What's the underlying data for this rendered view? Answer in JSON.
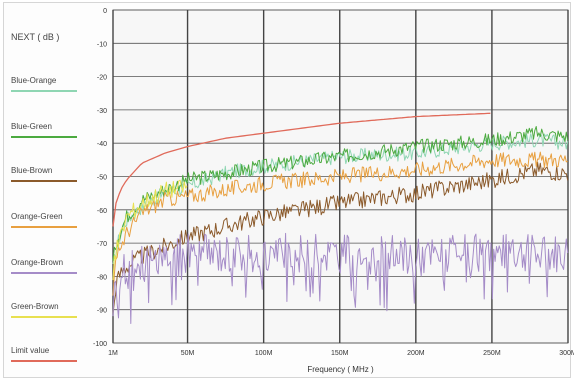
{
  "chart_data": {
    "type": "line",
    "ylabel": "NEXT ( dB )",
    "xlabel": "Frequency ( MHz )",
    "x_ticks": [
      "1M",
      "50M",
      "100M",
      "150M",
      "200M",
      "250M",
      "300M"
    ],
    "y_ticks": [
      "0",
      "-10",
      "-20",
      "-30",
      "-40",
      "-50",
      "-60",
      "-70",
      "-80",
      "-90",
      "-100"
    ],
    "xlim": [
      1,
      300
    ],
    "ylim": [
      -100,
      0
    ],
    "grid": true,
    "legend_position": "left",
    "series": [
      {
        "name": "Blue-Orange",
        "color": "#8fd6b3",
        "x": [
          1,
          3,
          6,
          10,
          20,
          35,
          50,
          75,
          100,
          150,
          200,
          250,
          280,
          300
        ],
        "values": [
          -78,
          -72,
          -67,
          -63,
          -59,
          -55,
          -53,
          -49,
          -47,
          -44,
          -43,
          -40,
          -39,
          -40
        ]
      },
      {
        "name": "Blue-Green",
        "color": "#4caa40",
        "x": [
          1,
          3,
          6,
          10,
          20,
          35,
          50,
          75,
          100,
          150,
          200,
          250,
          280,
          300
        ],
        "values": [
          -76,
          -70,
          -66,
          -62,
          -57,
          -54,
          -51,
          -49,
          -47,
          -44,
          -41,
          -39,
          -37,
          -38
        ]
      },
      {
        "name": "Blue-Brown",
        "color": "#8b5a2b",
        "x": [
          1,
          3,
          6,
          10,
          20,
          35,
          50,
          75,
          100,
          150,
          200,
          250,
          280,
          300
        ],
        "values": [
          -92,
          -82,
          -79,
          -77,
          -74,
          -71,
          -68,
          -65,
          -62,
          -58,
          -55,
          -51,
          -48,
          -49
        ]
      },
      {
        "name": "Orange-Green",
        "color": "#e8a040",
        "x": [
          1,
          3,
          6,
          10,
          20,
          35,
          50,
          75,
          100,
          150,
          200,
          250,
          280,
          300
        ],
        "values": [
          -84,
          -76,
          -71,
          -67,
          -61,
          -57,
          -56,
          -54,
          -52,
          -50,
          -48,
          -45,
          -45,
          -45
        ]
      },
      {
        "name": "Orange-Brown",
        "color": "#a58cc8",
        "x": [
          1,
          3,
          6,
          10,
          20,
          35,
          50,
          75,
          100,
          150,
          200,
          250,
          280,
          300
        ],
        "values": [
          -90,
          -84,
          -80,
          -78,
          -76,
          -74,
          -73,
          -73,
          -73,
          -73,
          -74,
          -73,
          -73,
          -73
        ]
      },
      {
        "name": "Green-Brown",
        "color": "#e8e050",
        "x": [
          1,
          3,
          6,
          10,
          20,
          35,
          50
        ],
        "values": [
          -80,
          -72,
          -68,
          -62,
          -58,
          -54,
          -53
        ]
      },
      {
        "name": "Limit value",
        "color": "#e06a5a",
        "x": [
          1,
          3,
          6,
          10,
          20,
          35,
          50,
          75,
          100,
          150,
          200,
          250
        ],
        "values": [
          -65,
          -58,
          -54,
          -51,
          -46,
          -43,
          -41,
          -38.5,
          -37,
          -34,
          -32,
          -31
        ]
      }
    ]
  }
}
